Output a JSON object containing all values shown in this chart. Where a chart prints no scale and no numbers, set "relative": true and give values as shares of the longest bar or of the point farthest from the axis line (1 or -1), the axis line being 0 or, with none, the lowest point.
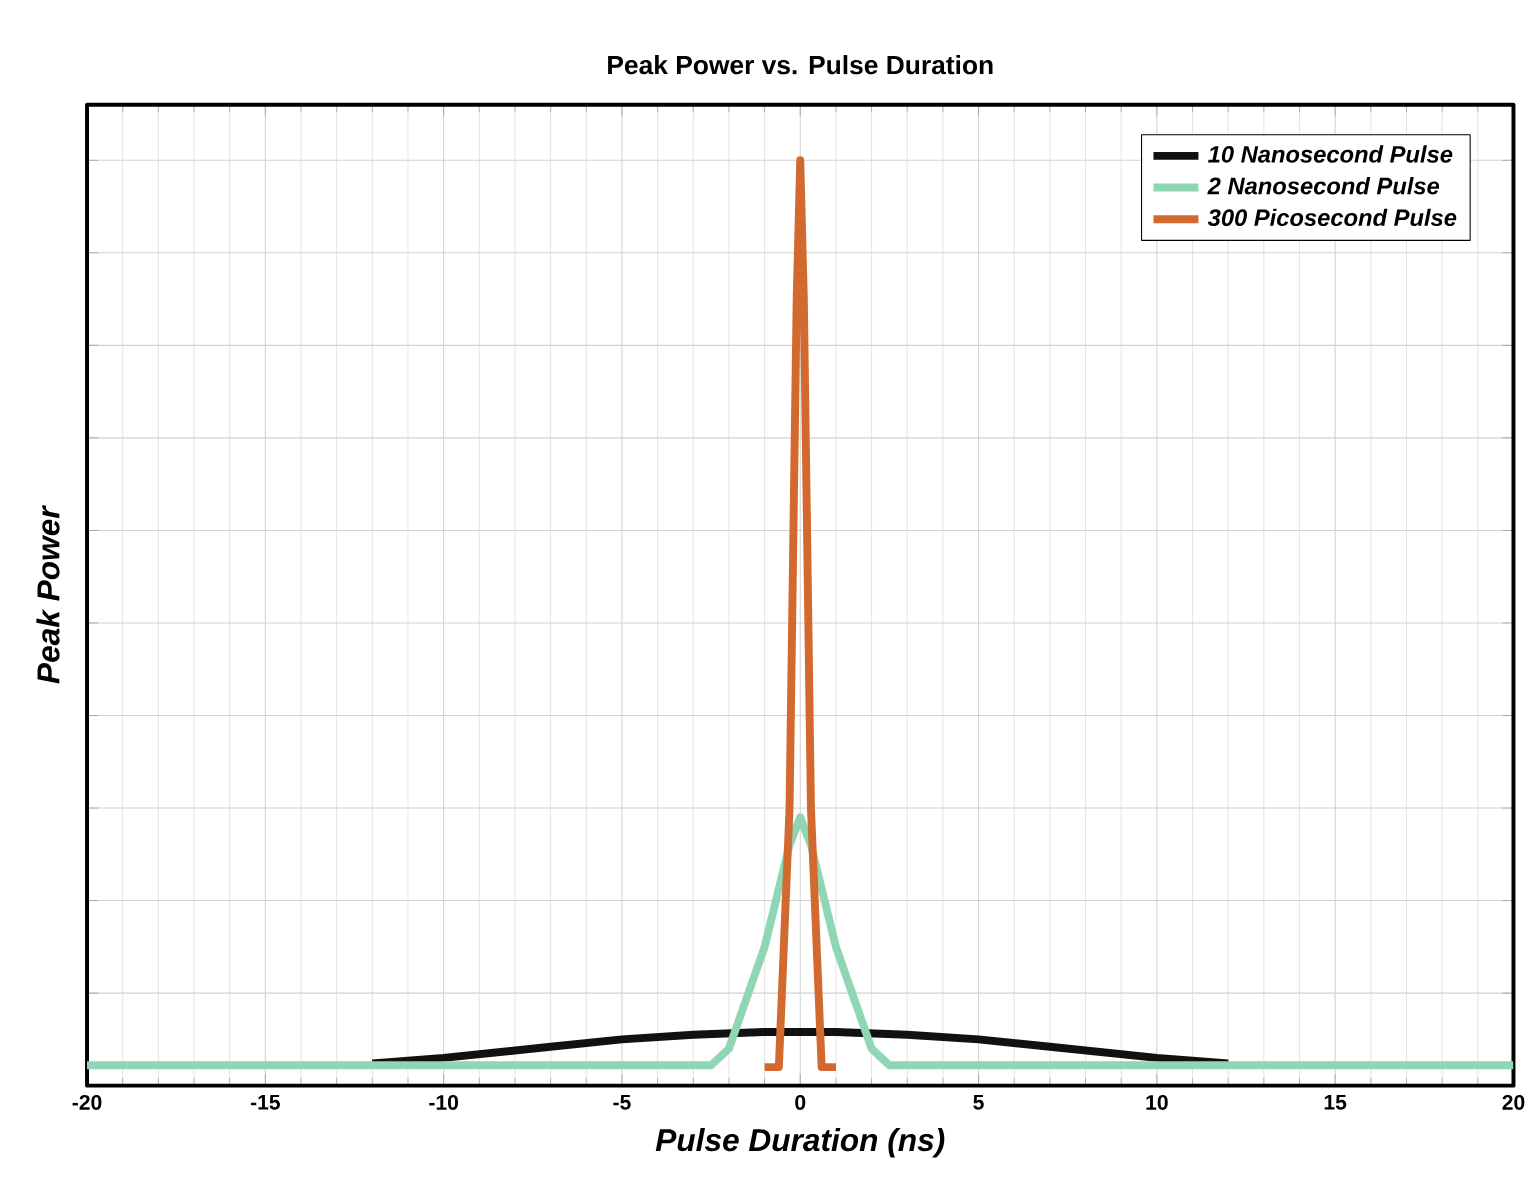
{
  "chart_data": {
    "type": "line",
    "title": "Peak Power vs. Pulse Duration",
    "xlabel": "Pulse Duration (ns)",
    "ylabel": "Peak Power",
    "relative": true,
    "xlim": [
      -20,
      20
    ],
    "xticks": [
      -20,
      -15,
      -10,
      -5,
      0,
      5,
      10,
      15,
      20
    ],
    "grid": true,
    "legend": "top right",
    "marker": "none",
    "line_style": "solid",
    "series": [
      {
        "name": "10 Nanosecond Pulse",
        "color": "#111111",
        "x": [
          -12,
          -10,
          -7,
          -5,
          -3,
          -1,
          0,
          1,
          3,
          5,
          7,
          10,
          12
        ],
        "values": [
          0.024,
          0.03,
          0.042,
          0.05,
          0.055,
          0.058,
          0.058,
          0.058,
          0.055,
          0.05,
          0.042,
          0.03,
          0.024
        ]
      },
      {
        "name": "2 Nanosecond Pulse",
        "color": "#8fd6b4",
        "x": [
          -20,
          -2.5,
          -2,
          -1,
          -0.3,
          0,
          0.3,
          1,
          2,
          2.5,
          20
        ],
        "values": [
          0.022,
          0.022,
          0.04,
          0.15,
          0.26,
          0.29,
          0.26,
          0.15,
          0.04,
          0.022,
          0.022
        ]
      },
      {
        "name": "300 Picosecond Pulse",
        "color": "#d2692f",
        "x": [
          -1,
          -0.6,
          -0.3,
          -0.1,
          0,
          0.1,
          0.3,
          0.6,
          1
        ],
        "values": [
          0.02,
          0.02,
          0.3,
          0.85,
          1,
          0.85,
          0.3,
          0.02,
          0.02
        ]
      }
    ]
  }
}
